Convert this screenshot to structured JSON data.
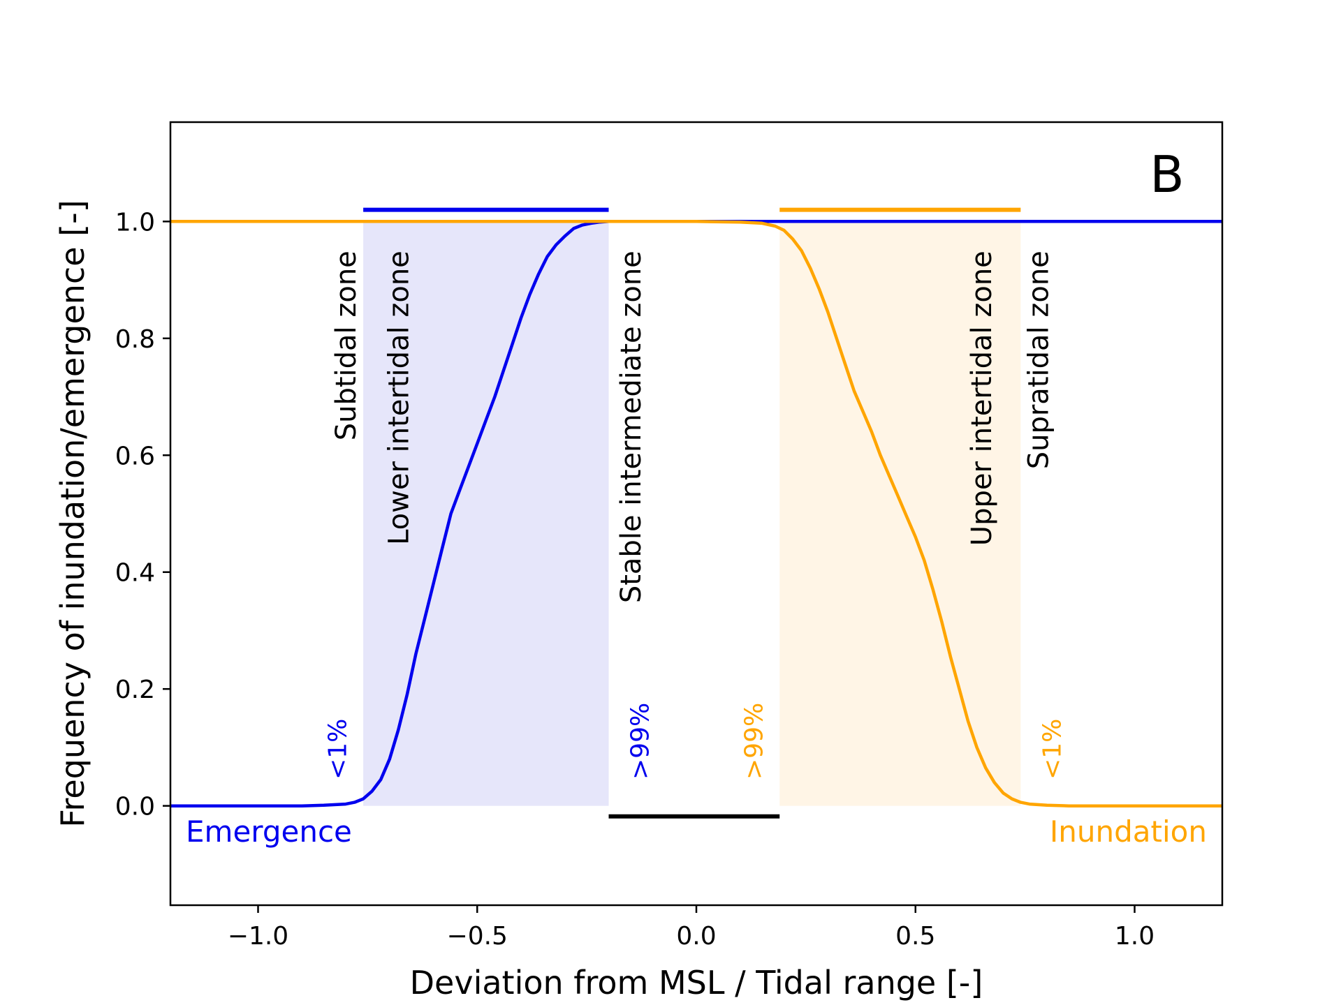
{
  "chart_data": {
    "type": "line",
    "panel_label": "B",
    "xlabel": "Deviation from MSL / Tidal range [-]",
    "ylabel": "Frequency of inundation/emergence [-]",
    "xlim": [
      -1.2,
      1.2
    ],
    "ylim": [
      -0.17,
      1.17
    ],
    "xticks": [
      -1.0,
      -0.5,
      0.0,
      0.5,
      1.0
    ],
    "xtick_labels": [
      "−1.0",
      "−0.5",
      "0.0",
      "0.5",
      "1.0"
    ],
    "yticks": [
      0.0,
      0.2,
      0.4,
      0.6,
      0.8,
      1.0
    ],
    "ytick_labels": [
      "0.0",
      "0.2",
      "0.4",
      "0.6",
      "0.8",
      "1.0"
    ],
    "grid": false,
    "series": [
      {
        "name": "Emergence",
        "color": "#0000ee",
        "x": [
          -1.2,
          -0.9,
          -0.85,
          -0.8,
          -0.78,
          -0.76,
          -0.74,
          -0.72,
          -0.7,
          -0.68,
          -0.66,
          -0.64,
          -0.62,
          -0.6,
          -0.58,
          -0.56,
          -0.54,
          -0.52,
          -0.5,
          -0.48,
          -0.46,
          -0.44,
          -0.42,
          -0.4,
          -0.38,
          -0.36,
          -0.34,
          -0.32,
          -0.3,
          -0.28,
          -0.26,
          -0.24,
          -0.22,
          -0.2,
          -0.15,
          -0.1,
          0.0,
          1.2
        ],
        "y": [
          0.0,
          0.0,
          0.001,
          0.003,
          0.006,
          0.012,
          0.025,
          0.045,
          0.08,
          0.13,
          0.19,
          0.26,
          0.32,
          0.38,
          0.44,
          0.5,
          0.54,
          0.58,
          0.62,
          0.66,
          0.7,
          0.745,
          0.79,
          0.835,
          0.875,
          0.91,
          0.94,
          0.96,
          0.975,
          0.988,
          0.994,
          0.997,
          0.999,
          1.0,
          1.0,
          1.0,
          1.0,
          1.0
        ]
      },
      {
        "name": "Inundation",
        "color": "#ffa500",
        "x": [
          -1.2,
          0.0,
          0.1,
          0.15,
          0.18,
          0.2,
          0.22,
          0.24,
          0.26,
          0.28,
          0.3,
          0.32,
          0.34,
          0.36,
          0.38,
          0.4,
          0.42,
          0.44,
          0.46,
          0.48,
          0.5,
          0.52,
          0.54,
          0.56,
          0.58,
          0.6,
          0.62,
          0.64,
          0.66,
          0.68,
          0.7,
          0.72,
          0.74,
          0.76,
          0.8,
          0.85,
          1.2
        ],
        "y": [
          1.0,
          1.0,
          0.999,
          0.997,
          0.992,
          0.985,
          0.97,
          0.95,
          0.92,
          0.885,
          0.845,
          0.8,
          0.755,
          0.71,
          0.675,
          0.64,
          0.6,
          0.565,
          0.53,
          0.495,
          0.46,
          0.42,
          0.37,
          0.315,
          0.255,
          0.2,
          0.145,
          0.1,
          0.065,
          0.04,
          0.022,
          0.012,
          0.006,
          0.003,
          0.001,
          0.0,
          0.0
        ]
      }
    ],
    "shaded_regions": [
      {
        "x0": -0.76,
        "x1": -0.2,
        "y0": 0.0,
        "y1": 1.0,
        "color": "#e6e6fa"
      },
      {
        "x0": 0.19,
        "x1": 0.74,
        "y0": 0.0,
        "y1": 1.0,
        "color": "#fff5e6"
      }
    ],
    "range_bars": [
      {
        "x0": -0.76,
        "x1": -0.2,
        "y": 1.02,
        "color": "#0000ee"
      },
      {
        "x0": 0.19,
        "x1": 0.74,
        "y": 1.02,
        "color": "#ffa500"
      },
      {
        "x0": -0.2,
        "x1": 0.19,
        "y": -0.018,
        "color": "#000000"
      }
    ],
    "zone_labels": [
      {
        "text": "Subtidal zone",
        "x": -0.8,
        "y_top": 0.95
      },
      {
        "text": "Lower intertidal zone",
        "x": -0.68,
        "y_top": 0.95
      },
      {
        "text": "Stable intermediate zone",
        "x": -0.15,
        "y_top": 0.95
      },
      {
        "text": "Upper intertidal zone",
        "x": 0.65,
        "y_top": 0.95
      },
      {
        "text": "Supratidal zone",
        "x": 0.78,
        "y_top": 0.95
      }
    ],
    "pct_labels": [
      {
        "text": "<1%",
        "x": -0.82,
        "y_bottom": 0.045,
        "color": "#0000ee"
      },
      {
        "text": ">99%",
        "x": -0.13,
        "y_bottom": 0.045,
        "color": "#0000ee"
      },
      {
        "text": ">99%",
        "x": 0.13,
        "y_bottom": 0.045,
        "color": "#ffa500"
      },
      {
        "text": "<1%",
        "x": 0.81,
        "y_bottom": 0.045,
        "color": "#ffa500"
      }
    ],
    "series_labels": [
      {
        "text": "Emergence",
        "anchor": "bottom-left",
        "color": "#0000ee"
      },
      {
        "text": "Inundation",
        "anchor": "bottom-right",
        "color": "#ffa500"
      }
    ]
  }
}
